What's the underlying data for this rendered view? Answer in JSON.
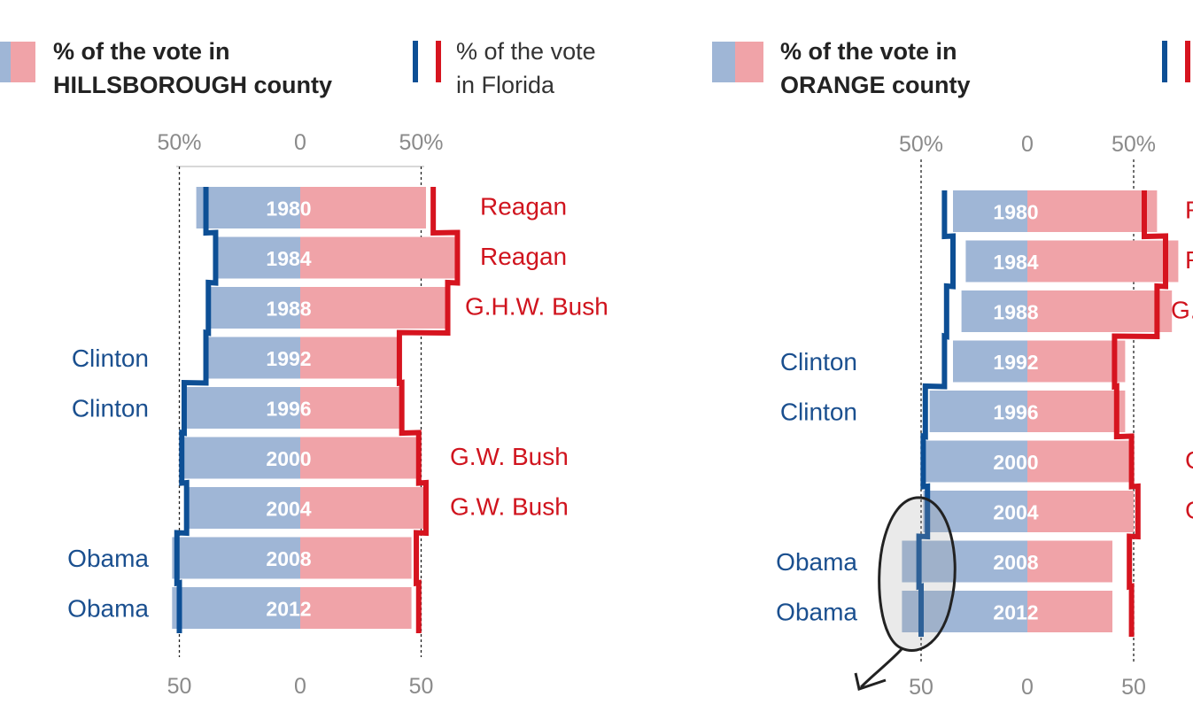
{
  "colors": {
    "dem_bar": "#9fb6d6",
    "rep_bar": "#f0a3a8",
    "dem_line": "#0d4f95",
    "rep_line": "#d6141f",
    "axis": "#cccccc",
    "tick": "#8a8a8a"
  },
  "legend_state": {
    "line1": "% of the vote",
    "line2": "in Florida"
  },
  "chart_data": [
    {
      "type": "bar",
      "title_line1": "% of the vote in",
      "title_line2": "HILLSBOROUGH county",
      "top_ticks": [
        "50%",
        "0",
        "50%"
      ],
      "bottom_ticks": [
        "50",
        "0",
        "50"
      ],
      "xlim": [
        -50,
        50
      ],
      "years": [
        "1980",
        "1984",
        "1988",
        "1992",
        "1996",
        "2000",
        "2004",
        "2008",
        "2012"
      ],
      "dem_winners": [
        "",
        "",
        "",
        "Clinton",
        "Clinton",
        "",
        "",
        "Obama",
        "Obama"
      ],
      "rep_winners": [
        "Reagan",
        "Reagan",
        "G.H.W. Bush",
        "",
        "",
        "G.W. Bush",
        "G.W. Bush",
        "",
        ""
      ],
      "county_dem": [
        43,
        34,
        38,
        38,
        47,
        49,
        46,
        53,
        53
      ],
      "county_rep": [
        52,
        65,
        61,
        40,
        41,
        48,
        53,
        46,
        46
      ],
      "florida_dem": [
        39,
        35,
        38,
        39,
        48,
        49,
        47,
        51,
        50
      ],
      "florida_rep": [
        55,
        65,
        61,
        41,
        42,
        49,
        52,
        48,
        49
      ]
    },
    {
      "type": "bar",
      "title_line1": "% of the vote in",
      "title_line2": "ORANGE county",
      "top_ticks": [
        "50%",
        "0",
        "50%"
      ],
      "bottom_ticks": [
        "50",
        "0",
        "50"
      ],
      "xlim": [
        -50,
        50
      ],
      "years": [
        "1980",
        "1984",
        "1988",
        "1992",
        "1996",
        "2000",
        "2004",
        "2008",
        "2012"
      ],
      "dem_winners": [
        "",
        "",
        "",
        "Clinton",
        "Clinton",
        "",
        "",
        "Obama",
        "Obama"
      ],
      "rep_winners": [
        "Reagan",
        "Reagan",
        "G.H.W. Bush",
        "",
        "",
        "G.W. Bush",
        "G.W. Bush",
        "",
        ""
      ],
      "county_dem": [
        35,
        29,
        31,
        35,
        46,
        48,
        49,
        59,
        59
      ],
      "county_rep": [
        61,
        71,
        68,
        46,
        46,
        48,
        50,
        40,
        40
      ],
      "florida_dem": [
        39,
        35,
        38,
        39,
        48,
        49,
        47,
        51,
        50
      ],
      "florida_rep": [
        55,
        65,
        61,
        41,
        42,
        49,
        52,
        48,
        49
      ]
    }
  ]
}
